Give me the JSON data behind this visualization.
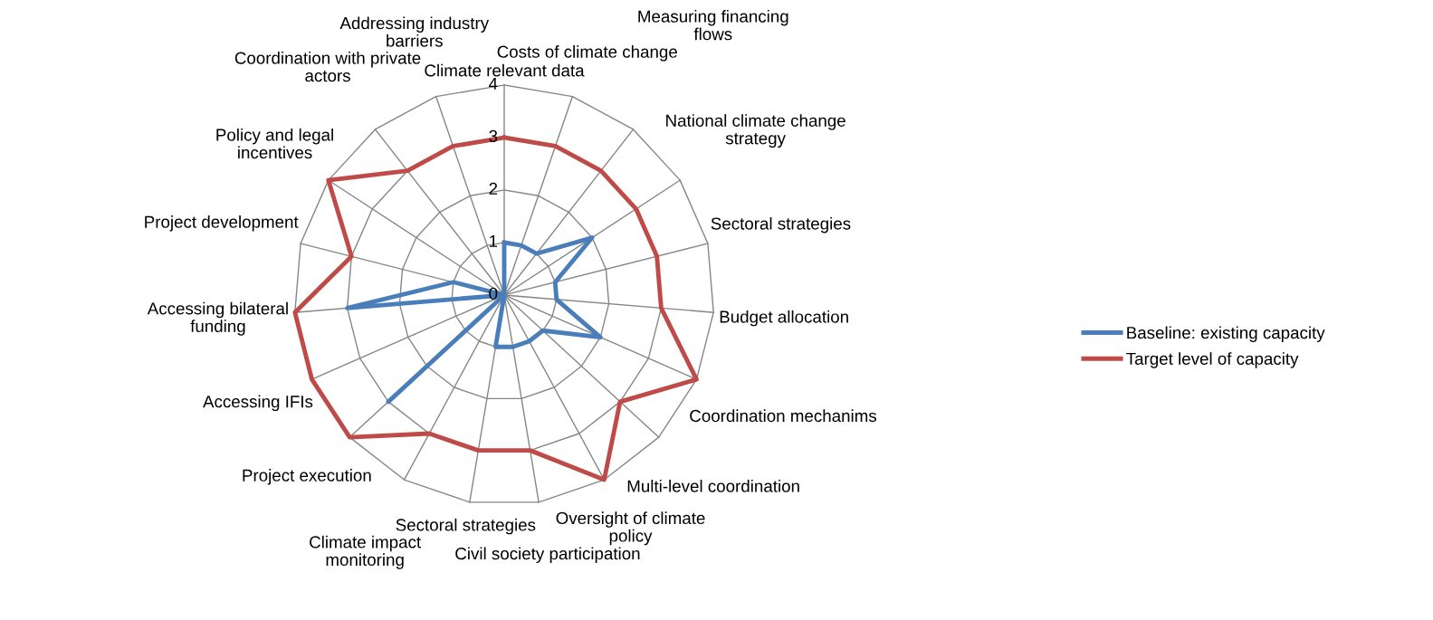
{
  "chart_data": {
    "type": "radar",
    "categories": [
      "Climate relevant data",
      "Costs of climate change",
      "Measuring financing\nflows",
      "National climate change\nstrategy",
      "Sectoral strategies",
      "Budget allocation",
      "Coordination mechanims",
      "Multi-level coordination",
      "Oversight of climate\npolicy",
      "Civil society participation",
      "Sectoral strategies",
      "Climate impact\nmonitoring",
      "Project execution",
      "Accessing IFIs",
      "Accessing bilateral\nfunding",
      "Project development",
      "Policy and legal\nincentives",
      "Coordination with private\nactors",
      "Addressing industry\nbarriers"
    ],
    "series": [
      {
        "name": "Baseline: existing capacity",
        "color": "#4a7ebb",
        "values": [
          1,
          1,
          1,
          2,
          1,
          1,
          2,
          1,
          1,
          1,
          1,
          0,
          3,
          0,
          3,
          1,
          0,
          0,
          0
        ]
      },
      {
        "name": "Target level of capacity",
        "color": "#be4b48",
        "values": [
          3,
          3,
          3,
          3,
          3,
          3,
          4,
          3,
          4,
          3,
          3,
          3,
          4,
          4,
          4,
          3,
          4,
          3,
          3
        ]
      }
    ],
    "ylim": [
      0,
      4
    ],
    "yticks": [
      0,
      1,
      2,
      3,
      4
    ],
    "grid": true,
    "legend": "right"
  }
}
